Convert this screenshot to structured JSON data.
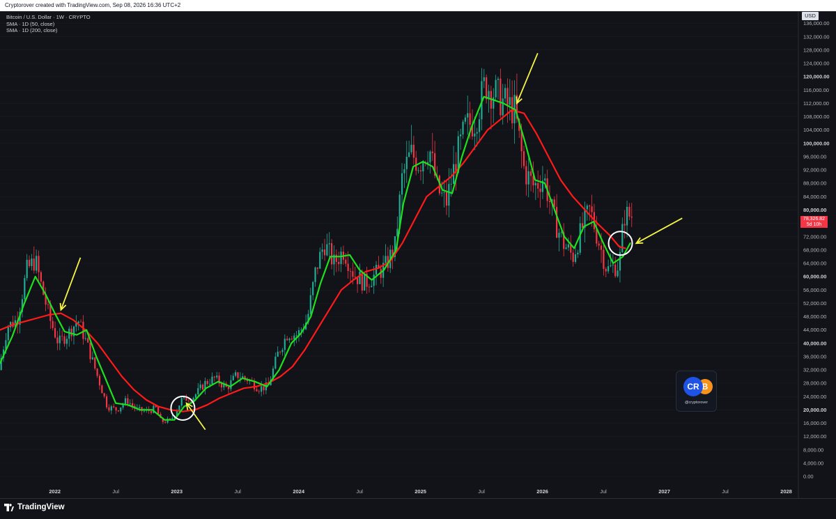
{
  "header": {
    "attribution": "Cryptorover created with TradingView.com, Sep 08, 2026 16:36 UTC+2"
  },
  "legend": {
    "symbol": "Bitcoin / U.S. Dollar · 1W · CRYPTO",
    "sma_fast": "SMA · 1D (50, close)",
    "sma_slow": "SMA · 1D (200, close)"
  },
  "price_axis": {
    "currency": "USD",
    "last_price": "78,326.82",
    "countdown": "5d 10h"
  },
  "watermark": {
    "logo_text_left": "CR",
    "logo_text_right": "B",
    "handle": "@cryptorover"
  },
  "footer": {
    "brand": "TradingView"
  },
  "colors": {
    "background": "#111318",
    "candle_up": "#22ab94",
    "candle_down": "#f23645",
    "sma_fast": "#1ee01e",
    "sma_slow": "#ff1a1a",
    "arrow": "#f5f545",
    "circle": "#ffffff"
  },
  "chart_data": {
    "type": "line",
    "title": "Bitcoin / U.S. Dollar · 1W · CRYPTO",
    "xlabel": "",
    "ylabel": "",
    "ylim": [
      0,
      138000
    ],
    "y_ticks": [
      "0.00",
      "4,000.00",
      "8,000.00",
      "12,000.00",
      "16,000.00",
      "20,000.00",
      "24,000.00",
      "28,000.00",
      "32,000.00",
      "36,000.00",
      "40,000.00",
      "44,000.00",
      "48,000.00",
      "52,000.00",
      "56,000.00",
      "60,000.00",
      "64,000.00",
      "68,000.00",
      "72,000.00",
      "76,000.00",
      "80,000.00",
      "84,000.00",
      "88,000.00",
      "92,000.00",
      "96,000.00",
      "100,000.00",
      "104,000.00",
      "108,000.00",
      "112,000.00",
      "116,000.00",
      "120,000.00",
      "124,000.00",
      "128,000.00",
      "132,000.00",
      "136,000.00"
    ],
    "y_ticks_bold": [
      "20,000.00",
      "40,000.00",
      "60,000.00",
      "80,000.00",
      "100,000.00",
      "120,000.00"
    ],
    "x_ticks": [
      {
        "label": "2022",
        "t": 2022.0,
        "bold": true
      },
      {
        "label": "Jul",
        "t": 2022.5,
        "bold": false
      },
      {
        "label": "2023",
        "t": 2023.0,
        "bold": true
      },
      {
        "label": "Jul",
        "t": 2023.5,
        "bold": false
      },
      {
        "label": "2024",
        "t": 2024.0,
        "bold": true
      },
      {
        "label": "Jul",
        "t": 2024.5,
        "bold": false
      },
      {
        "label": "2025",
        "t": 2025.0,
        "bold": true
      },
      {
        "label": "Jul",
        "t": 2025.5,
        "bold": false
      },
      {
        "label": "2026",
        "t": 2026.0,
        "bold": true
      },
      {
        "label": "Jul",
        "t": 2026.5,
        "bold": false
      },
      {
        "label": "2027",
        "t": 2027.0,
        "bold": true
      },
      {
        "label": "Jul",
        "t": 2027.5,
        "bold": false
      },
      {
        "label": "2028",
        "t": 2028.0,
        "bold": true
      }
    ],
    "price_path": [
      [
        2021.55,
        32000
      ],
      [
        2021.62,
        45000
      ],
      [
        2021.7,
        47000
      ],
      [
        2021.78,
        62000
      ],
      [
        2021.85,
        65000
      ],
      [
        2021.9,
        57000
      ],
      [
        2021.97,
        47000
      ],
      [
        2022.04,
        40000
      ],
      [
        2022.12,
        43000
      ],
      [
        2022.2,
        47000
      ],
      [
        2022.28,
        39000
      ],
      [
        2022.36,
        30000
      ],
      [
        2022.44,
        21000
      ],
      [
        2022.52,
        20000
      ],
      [
        2022.6,
        23000
      ],
      [
        2022.68,
        20000
      ],
      [
        2022.76,
        19500
      ],
      [
        2022.84,
        20500
      ],
      [
        2022.88,
        16500
      ],
      [
        2022.96,
        16800
      ],
      [
        2023.05,
        23000
      ],
      [
        2023.15,
        24000
      ],
      [
        2023.24,
        28000
      ],
      [
        2023.32,
        29500
      ],
      [
        2023.42,
        26500
      ],
      [
        2023.5,
        30500
      ],
      [
        2023.6,
        29000
      ],
      [
        2023.68,
        26500
      ],
      [
        2023.76,
        27000
      ],
      [
        2023.84,
        37000
      ],
      [
        2023.92,
        43000
      ],
      [
        2024.0,
        42500
      ],
      [
        2024.08,
        47000
      ],
      [
        2024.15,
        62000
      ],
      [
        2024.22,
        70000
      ],
      [
        2024.3,
        64000
      ],
      [
        2024.38,
        68000
      ],
      [
        2024.46,
        61000
      ],
      [
        2024.55,
        58000
      ],
      [
        2024.62,
        60000
      ],
      [
        2024.72,
        63000
      ],
      [
        2024.8,
        69000
      ],
      [
        2024.86,
        90000
      ],
      [
        2024.93,
        97000
      ],
      [
        2025.0,
        94000
      ],
      [
        2025.08,
        99000
      ],
      [
        2025.15,
        86000
      ],
      [
        2025.22,
        82000
      ],
      [
        2025.3,
        95000
      ],
      [
        2025.38,
        105000
      ],
      [
        2025.46,
        107000
      ],
      [
        2025.54,
        118000
      ],
      [
        2025.62,
        115000
      ],
      [
        2025.7,
        112000
      ],
      [
        2025.78,
        110000
      ],
      [
        2025.86,
        92000
      ],
      [
        2025.94,
        87000
      ],
      [
        2026.02,
        90000
      ],
      [
        2026.1,
        78000
      ],
      [
        2026.18,
        70000
      ],
      [
        2026.26,
        66000
      ],
      [
        2026.34,
        75000
      ],
      [
        2026.4,
        80000
      ],
      [
        2026.46,
        72000
      ],
      [
        2026.54,
        62000
      ],
      [
        2026.6,
        63000
      ],
      [
        2026.64,
        63500
      ],
      [
        2026.68,
        78500
      ],
      [
        2026.73,
        78300
      ]
    ],
    "series": [
      {
        "name": "SMA · 1D (50, close)",
        "points": [
          [
            2021.55,
            34000
          ],
          [
            2021.65,
            42000
          ],
          [
            2021.75,
            52000
          ],
          [
            2021.84,
            60000
          ],
          [
            2021.92,
            55000
          ],
          [
            2022.0,
            49000
          ],
          [
            2022.08,
            43500
          ],
          [
            2022.18,
            42500
          ],
          [
            2022.26,
            44000
          ],
          [
            2022.34,
            36000
          ],
          [
            2022.42,
            29000
          ],
          [
            2022.5,
            22000
          ],
          [
            2022.6,
            21500
          ],
          [
            2022.7,
            20000
          ],
          [
            2022.8,
            20000
          ],
          [
            2022.9,
            17000
          ],
          [
            2022.98,
            17000
          ],
          [
            2023.06,
            21000
          ],
          [
            2023.14,
            22500
          ],
          [
            2023.24,
            26500
          ],
          [
            2023.34,
            28500
          ],
          [
            2023.44,
            27000
          ],
          [
            2023.54,
            29500
          ],
          [
            2023.64,
            28500
          ],
          [
            2023.74,
            27000
          ],
          [
            2023.84,
            32000
          ],
          [
            2023.94,
            40000
          ],
          [
            2024.02,
            43000
          ],
          [
            2024.1,
            48000
          ],
          [
            2024.18,
            58000
          ],
          [
            2024.26,
            66000
          ],
          [
            2024.34,
            66000
          ],
          [
            2024.42,
            66500
          ],
          [
            2024.5,
            62000
          ],
          [
            2024.6,
            59000
          ],
          [
            2024.7,
            62000
          ],
          [
            2024.8,
            68000
          ],
          [
            2024.86,
            82000
          ],
          [
            2024.94,
            93000
          ],
          [
            2025.02,
            94500
          ],
          [
            2025.1,
            93000
          ],
          [
            2025.18,
            86000
          ],
          [
            2025.26,
            85000
          ],
          [
            2025.34,
            96000
          ],
          [
            2025.42,
            105000
          ],
          [
            2025.52,
            114000
          ],
          [
            2025.6,
            113000
          ],
          [
            2025.68,
            112000
          ],
          [
            2025.78,
            110000
          ],
          [
            2025.86,
            100000
          ],
          [
            2025.94,
            89000
          ],
          [
            2026.02,
            88000
          ],
          [
            2026.1,
            80000
          ],
          [
            2026.18,
            72000
          ],
          [
            2026.26,
            68500
          ],
          [
            2026.34,
            75000
          ],
          [
            2026.42,
            76500
          ],
          [
            2026.5,
            70000
          ],
          [
            2026.58,
            64000
          ],
          [
            2026.66,
            66000
          ],
          [
            2026.72,
            70000
          ]
        ]
      },
      {
        "name": "SMA · 1D (200, close)",
        "points": [
          [
            2021.55,
            44000
          ],
          [
            2021.65,
            45500
          ],
          [
            2021.75,
            46500
          ],
          [
            2021.85,
            47500
          ],
          [
            2021.95,
            48500
          ],
          [
            2022.05,
            49000
          ],
          [
            2022.15,
            47000
          ],
          [
            2022.25,
            44000
          ],
          [
            2022.35,
            40000
          ],
          [
            2022.45,
            35000
          ],
          [
            2022.55,
            30000
          ],
          [
            2022.65,
            26000
          ],
          [
            2022.75,
            23000
          ],
          [
            2022.85,
            21000
          ],
          [
            2022.95,
            20000
          ],
          [
            2023.05,
            19500
          ],
          [
            2023.15,
            20000
          ],
          [
            2023.25,
            21500
          ],
          [
            2023.35,
            23500
          ],
          [
            2023.45,
            25000
          ],
          [
            2023.55,
            26500
          ],
          [
            2023.65,
            27000
          ],
          [
            2023.75,
            28000
          ],
          [
            2023.85,
            30000
          ],
          [
            2023.95,
            33000
          ],
          [
            2024.05,
            38000
          ],
          [
            2024.15,
            44000
          ],
          [
            2024.25,
            50000
          ],
          [
            2024.35,
            56000
          ],
          [
            2024.45,
            59000
          ],
          [
            2024.55,
            61500
          ],
          [
            2024.65,
            62500
          ],
          [
            2024.75,
            64500
          ],
          [
            2024.85,
            70000
          ],
          [
            2024.95,
            77000
          ],
          [
            2025.05,
            84000
          ],
          [
            2025.15,
            87000
          ],
          [
            2025.25,
            90000
          ],
          [
            2025.35,
            94000
          ],
          [
            2025.45,
            99000
          ],
          [
            2025.55,
            104000
          ],
          [
            2025.65,
            107000
          ],
          [
            2025.75,
            110000
          ],
          [
            2025.85,
            109000
          ],
          [
            2025.95,
            103000
          ],
          [
            2026.05,
            96000
          ],
          [
            2026.15,
            89000
          ],
          [
            2026.25,
            84000
          ],
          [
            2026.35,
            80000
          ],
          [
            2026.45,
            76000
          ],
          [
            2026.55,
            72500
          ],
          [
            2026.63,
            69000
          ],
          [
            2026.68,
            68500
          ]
        ]
      }
    ],
    "annotations": [
      {
        "type": "arrow",
        "points_to": [
          2022.05,
          50000
        ]
      },
      {
        "type": "arrow",
        "points_to": [
          2023.08,
          22000
        ]
      },
      {
        "type": "arrow",
        "points_to": [
          2025.79,
          112000
        ]
      },
      {
        "type": "arrow",
        "points_to": [
          2026.77,
          70000
        ]
      },
      {
        "type": "circle",
        "center": [
          2023.05,
          20500
        ]
      },
      {
        "type": "circle",
        "center": [
          2026.64,
          70000
        ]
      }
    ]
  }
}
